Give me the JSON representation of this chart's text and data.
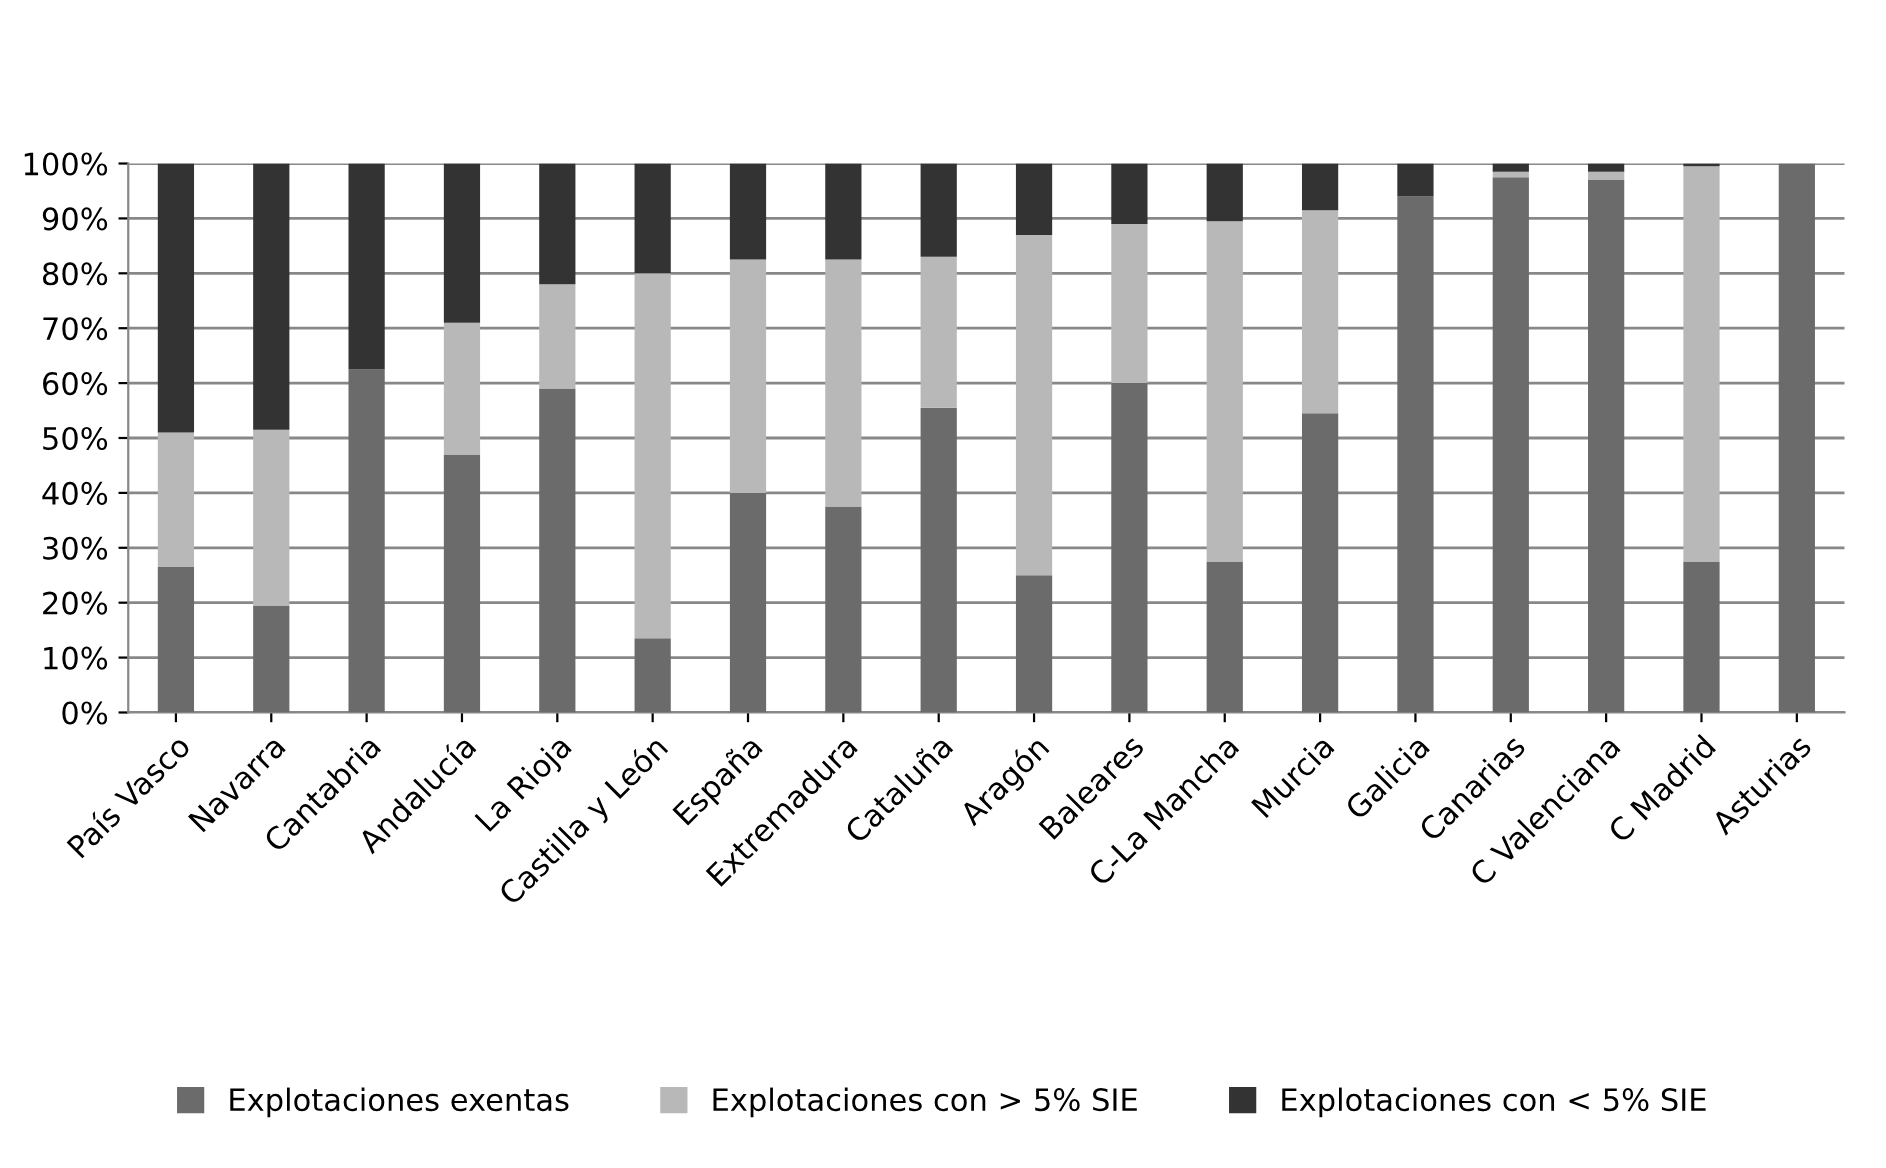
{
  "chart_data": {
    "type": "bar",
    "stacked": true,
    "categories": [
      "País Vasco",
      "Navarra",
      "Cantabria",
      "Andalucía",
      "La Rioja",
      "Castilla y León",
      "España",
      "Extremadura",
      "Cataluña",
      "Aragón",
      "Baleares",
      "C-La Mancha",
      "Murcia",
      "Galicia",
      "Canarias",
      "C Valenciana",
      "C Madrid",
      "Asturias"
    ],
    "series": [
      {
        "name": "Explotaciones exentas",
        "color": "#6b6b6b",
        "values": [
          26.5,
          19.5,
          62.5,
          47,
          59,
          13.5,
          40,
          37.5,
          55.5,
          25,
          60,
          27.5,
          54.5,
          94,
          97.5,
          97,
          27.5,
          100
        ]
      },
      {
        "name": "Explotaciones con > 5% SIE",
        "color": "#b8b8b8",
        "values": [
          24.5,
          32,
          0,
          24,
          19,
          66.5,
          42.5,
          45,
          27.5,
          62,
          29,
          62,
          37,
          0,
          1,
          1.5,
          72,
          0
        ]
      },
      {
        "name": "Explotaciones con < 5% SIE",
        "color": "#333333",
        "values": [
          49,
          48.5,
          37.5,
          29,
          22,
          20,
          17.5,
          17.5,
          17,
          13,
          11,
          10.5,
          8.5,
          6,
          1.5,
          1.5,
          0.5,
          0
        ]
      }
    ],
    "ylim": [
      0,
      100
    ],
    "yticks": [
      {
        "value": 0,
        "label": "0%"
      },
      {
        "value": 10,
        "label": "10%"
      },
      {
        "value": 20,
        "label": "20%"
      },
      {
        "value": 30,
        "label": "30%"
      },
      {
        "value": 40,
        "label": "40%"
      },
      {
        "value": 50,
        "label": "50%"
      },
      {
        "value": 60,
        "label": "60%"
      },
      {
        "value": 70,
        "label": "70%"
      },
      {
        "value": 80,
        "label": "80%"
      },
      {
        "value": 90,
        "label": "90%"
      },
      {
        "value": 100,
        "label": "100%"
      }
    ],
    "grid": "y",
    "legend": "bottom"
  }
}
